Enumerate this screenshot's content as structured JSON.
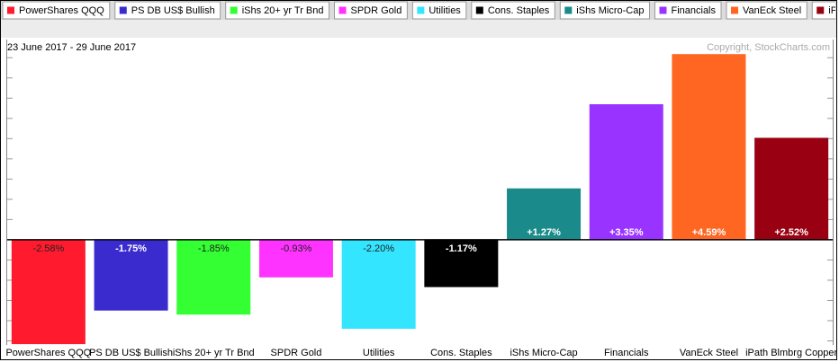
{
  "chart_data": {
    "type": "bar",
    "subtitle": "23 June 2017 - 29 June 2017",
    "annotation": "Copyright, StockCharts.com",
    "categories": [
      "PowerShares QQQ",
      "PS DB US$ Bullish",
      "iShs 20+ yr Tr Bnd",
      "SPDR Gold",
      "Utilities",
      "Cons. Staples",
      "iShs Micro-Cap",
      "Financials",
      "VanEck Steel",
      "iPath Blmbrg Copper"
    ],
    "values": [
      -2.58,
      -1.75,
      -1.85,
      -0.93,
      -2.2,
      -1.17,
      1.27,
      3.35,
      4.59,
      2.52
    ],
    "value_labels": [
      "-2.58%",
      "-1.75%",
      "-1.85%",
      "-0.93%",
      "-2.20%",
      "-1.17%",
      "+1.27%",
      "+3.35%",
      "+4.59%",
      "+2.52%"
    ],
    "colors": [
      "#ff1a2e",
      "#3a2bcf",
      "#33ff33",
      "#ff33ff",
      "#33e5ff",
      "#000000",
      "#1a8a8a",
      "#9933ff",
      "#ff6622",
      "#990011"
    ],
    "label_colors": [
      "#222222",
      "#ffffff",
      "#222222",
      "#222222",
      "#222222",
      "#ffffff",
      "#ffffff",
      "#ffffff",
      "#ffffff",
      "#ffffff"
    ],
    "ylim": [
      -2.6,
      4.95
    ],
    "yticks": [
      -2.5,
      -2,
      -1.5,
      -1,
      -0.5,
      0,
      0.5,
      1,
      1.5,
      2,
      2.5,
      3,
      3.5,
      4,
      4.5
    ]
  }
}
